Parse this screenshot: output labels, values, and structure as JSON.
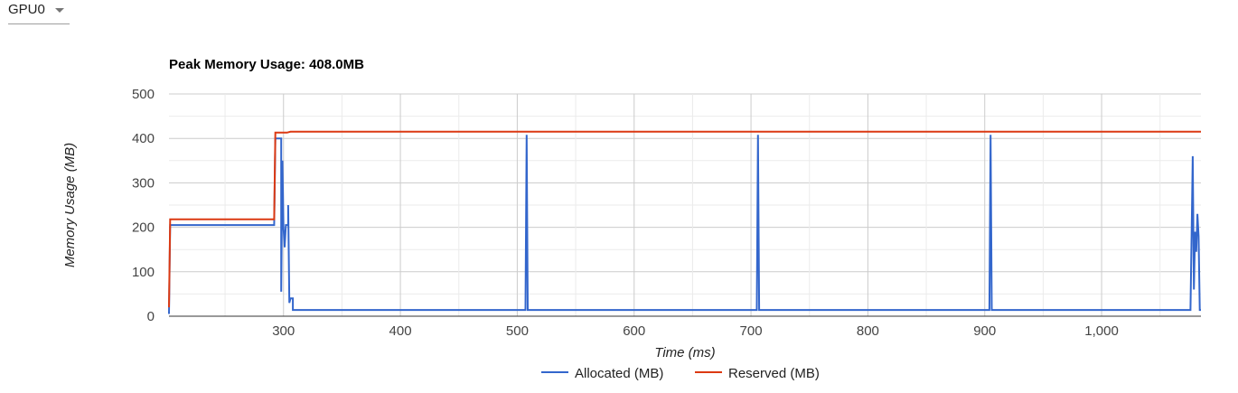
{
  "device_selector": {
    "value": "GPU0",
    "icon": "caret-down-icon"
  },
  "chart_data": {
    "type": "line",
    "title": "Peak Memory Usage: 408.0MB",
    "xlabel": "Time (ms)",
    "ylabel": "Memory Usage (MB)",
    "xlim": [
      202,
      1085
    ],
    "ylim": [
      0,
      500
    ],
    "x_ticks": [
      300,
      400,
      500,
      600,
      700,
      800,
      900,
      1000
    ],
    "x_tick_labels": [
      "300",
      "400",
      "500",
      "600",
      "700",
      "800",
      "900",
      "1,000"
    ],
    "y_ticks": [
      0,
      100,
      200,
      300,
      400,
      500
    ],
    "y_tick_labels": [
      "0",
      "100",
      "200",
      "300",
      "400",
      "500"
    ],
    "grid": true,
    "legend": "bottom",
    "series": [
      {
        "name": "Allocated (MB)",
        "color": "#3366cc",
        "points": [
          [
            202,
            5
          ],
          [
            203,
            205
          ],
          [
            292,
            205
          ],
          [
            293,
            400
          ],
          [
            298,
            400
          ],
          [
            298,
            55
          ],
          [
            299,
            350
          ],
          [
            300,
            200
          ],
          [
            301,
            155
          ],
          [
            302,
            205
          ],
          [
            304,
            205
          ],
          [
            304,
            250
          ],
          [
            305,
            30
          ],
          [
            306,
            40
          ],
          [
            308,
            40
          ],
          [
            308,
            14
          ],
          [
            507,
            14
          ],
          [
            508,
            408
          ],
          [
            509,
            14
          ],
          [
            705,
            14
          ],
          [
            706,
            408
          ],
          [
            707,
            14
          ],
          [
            904,
            14
          ],
          [
            905,
            408
          ],
          [
            906,
            14
          ],
          [
            1076,
            14
          ],
          [
            1077,
            188
          ],
          [
            1078,
            360
          ],
          [
            1079,
            60
          ],
          [
            1080,
            190
          ],
          [
            1081,
            145
          ],
          [
            1082,
            230
          ],
          [
            1083,
            180
          ],
          [
            1084,
            14
          ],
          [
            1085,
            14
          ]
        ]
      },
      {
        "name": "Reserved (MB)",
        "color": "#dc3912",
        "points": [
          [
            202,
            20
          ],
          [
            203,
            218
          ],
          [
            292,
            218
          ],
          [
            293,
            413
          ],
          [
            303,
            413
          ],
          [
            306,
            415
          ],
          [
            1085,
            415
          ]
        ]
      }
    ]
  }
}
